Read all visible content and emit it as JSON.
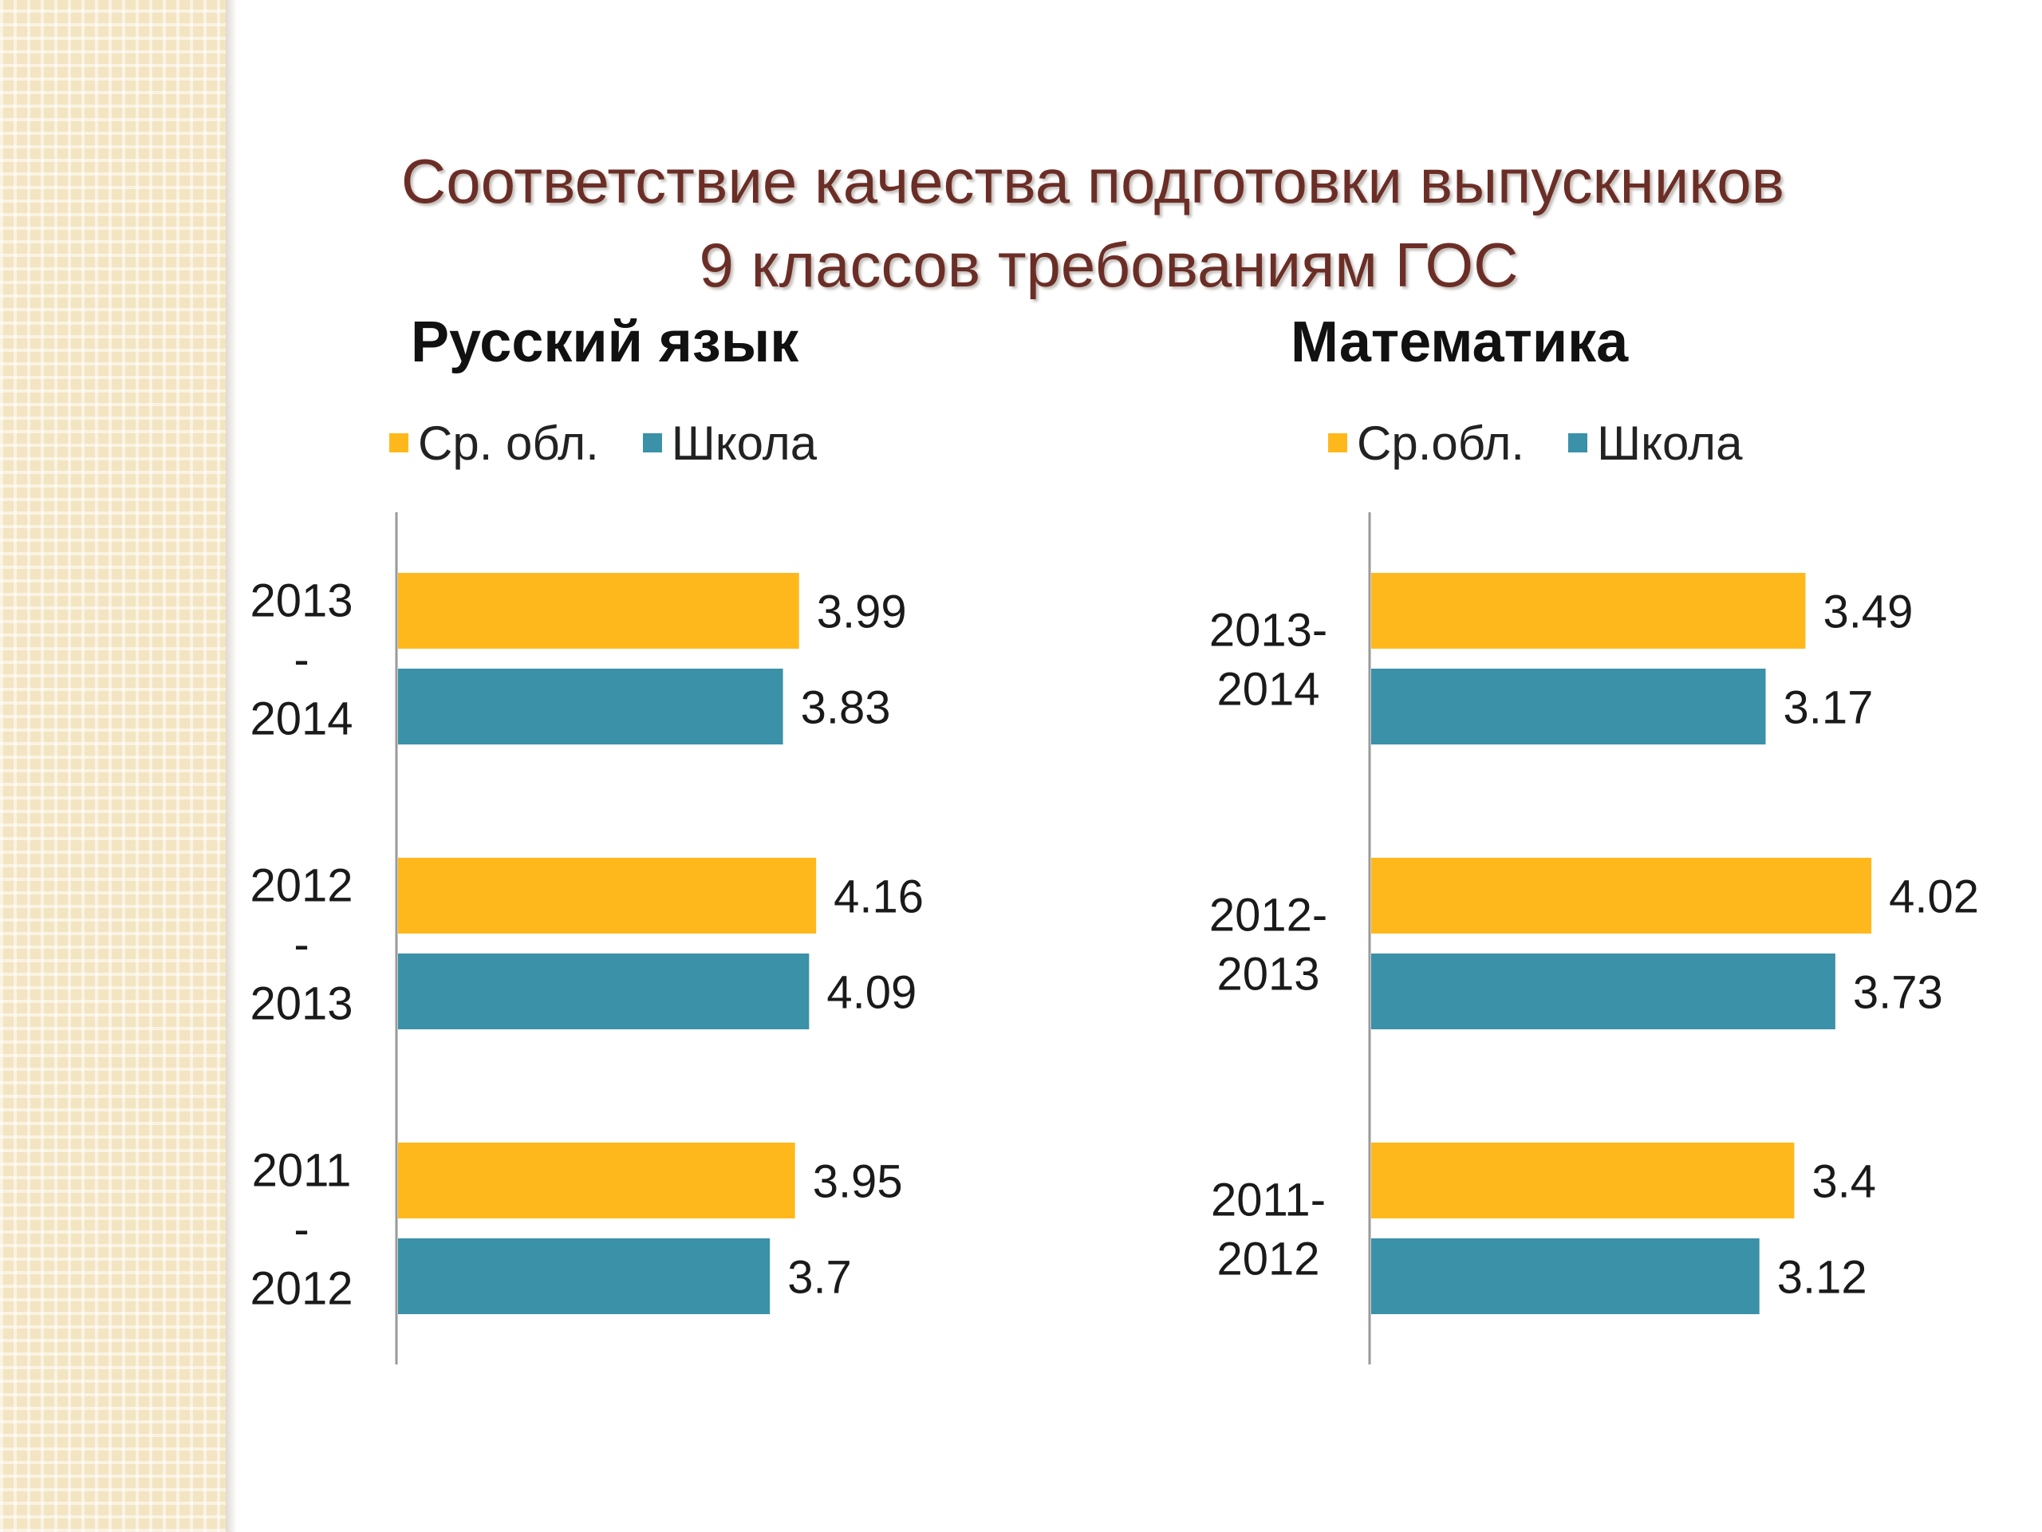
{
  "title": {
    "line1": "Соответствие качества подготовки выпускников",
    "line2": "9 классов требованиям ГОС"
  },
  "colors": {
    "region": "#FFB81C",
    "school": "#3A91A8",
    "title": "#6B2E27"
  },
  "chart_data": [
    {
      "type": "bar",
      "orientation": "horizontal",
      "title": "Русский язык",
      "categories": [
        [
          "2013",
          "-",
          "2014"
        ],
        [
          "2012",
          "-",
          "2013"
        ],
        [
          "2011",
          "-",
          "2012"
        ]
      ],
      "series": [
        {
          "name": "Ср. обл.",
          "values": [
            3.99,
            4.16,
            3.95
          ]
        },
        {
          "name": "Школа",
          "values": [
            3.83,
            4.09,
            3.7
          ]
        }
      ],
      "xlim": [
        0,
        4.65
      ],
      "legend_position": "top",
      "grid": false
    },
    {
      "type": "bar",
      "orientation": "horizontal",
      "title": "Математика",
      "categories": [
        [
          "2013-",
          "2014"
        ],
        [
          "2012-",
          "2013"
        ],
        [
          "2011-",
          "2012"
        ]
      ],
      "series": [
        {
          "name": "Ср.обл.",
          "values": [
            3.49,
            4.02,
            3.4
          ]
        },
        {
          "name": "Школа",
          "values": [
            3.17,
            3.73,
            3.12
          ]
        }
      ],
      "xlim": [
        0,
        4.9
      ],
      "legend_position": "top",
      "grid": false
    }
  ]
}
